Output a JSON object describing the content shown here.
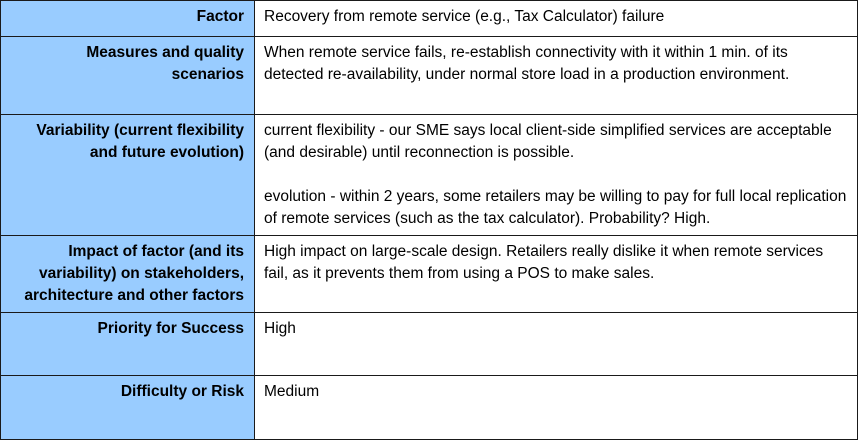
{
  "rows": [
    {
      "label": "Factor",
      "value": [
        "Recovery from remote service (e.g., Tax Calculator) failure"
      ]
    },
    {
      "label": "Measures and quality scenarios",
      "value": [
        "When remote service fails, re-establish connectivity with it within 1 min. of its detected re-availability, under normal store load in a production environment."
      ]
    },
    {
      "label": "Variability (current flexibility and future evolution)",
      "value": [
        "current flexibility - our SME says local client-side simplified services are acceptable (and desirable) until reconnection is possible.",
        "evolution - within 2 years, some retailers may be willing to pay for full local replication of remote services (such as the tax calculator). Probability? High."
      ]
    },
    {
      "label": "Impact of factor (and its variability) on stakeholders, architecture and other factors",
      "value": [
        "High impact on large-scale design. Retailers really dislike it when remote services fail, as it prevents them from using a POS to make sales."
      ]
    },
    {
      "label": "Priority for Success",
      "value": [
        "High"
      ]
    },
    {
      "label": "Difficulty or Risk",
      "value": [
        "Medium"
      ]
    }
  ]
}
